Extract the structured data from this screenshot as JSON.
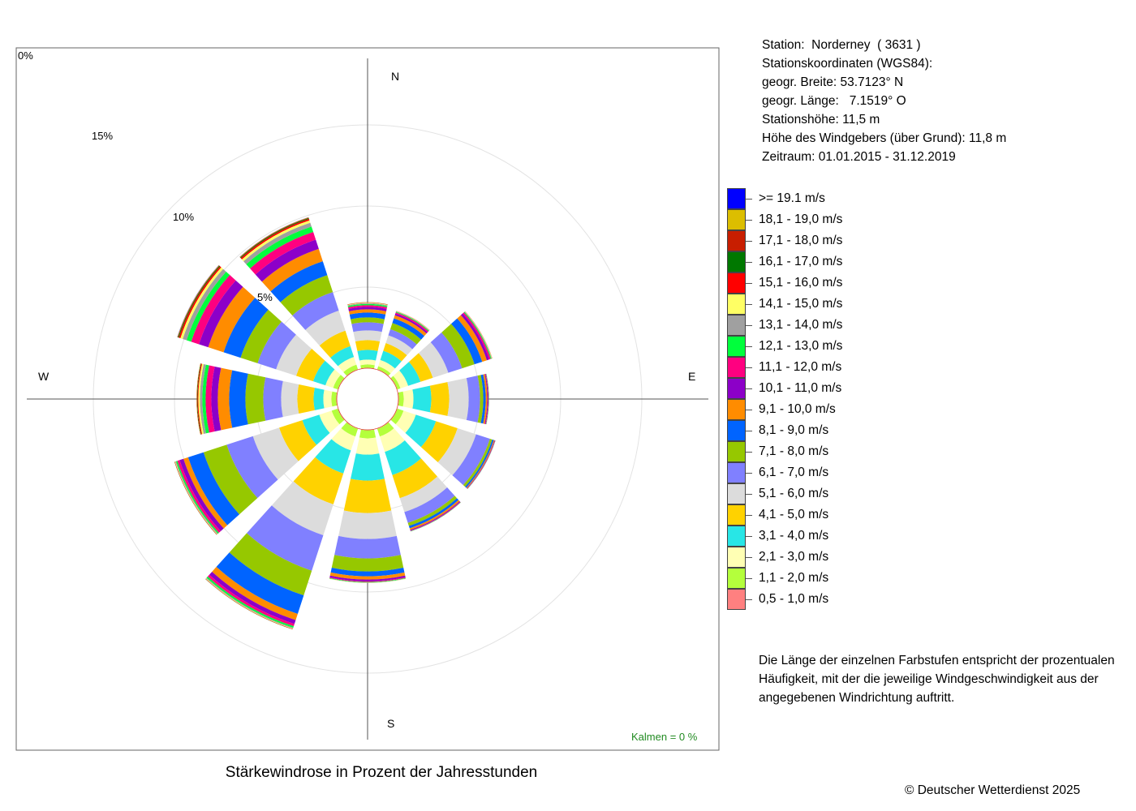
{
  "title": "Stärkewindrose in Prozent der Jahresstunden",
  "copyright": "© Deutscher Wetterdienst  2025",
  "calms": "Kalmen  =  0 %",
  "station_info": [
    "Station:  Norderney  ( 3631 )",
    "Stationskoordinaten (WGS84):",
    "geogr. Breite: 53.7123° N",
    "geogr. Länge:   7.1519° O",
    "Stationshöhe: 11,5 m",
    "Höhe des Windgebers (über Grund): 11,8 m",
    "Zeitraum: 01.01.2015 - 31.12.2019"
  ],
  "note": "Die Länge der einzelnen Farbstufen entspricht der prozentualen Häufigkeit, mit der die jeweilige Windgeschwindigkeit aus der angegebenen Windrichtung auftritt.",
  "compass": {
    "N": "N",
    "E": "E",
    "S": "S",
    "W": "W"
  },
  "ring_labels": [
    "0%",
    "5%",
    "10%",
    "15%"
  ],
  "legend": [
    {
      "label": ">= 19.1 m/s",
      "color": "#0000ff"
    },
    {
      "label": "18,1 - 19,0 m/s",
      "color": "#dcbe00"
    },
    {
      "label": "17,1 - 18,0 m/s",
      "color": "#c81e00"
    },
    {
      "label": "16,1 - 17,0 m/s",
      "color": "#007800"
    },
    {
      "label": "15,1 - 16,0 m/s",
      "color": "#ff0000"
    },
    {
      "label": "14,1 - 15,0 m/s",
      "color": "#ffff64"
    },
    {
      "label": "13,1 - 14,0 m/s",
      "color": "#a0a0a0"
    },
    {
      "label": "12,1 - 13,0 m/s",
      "color": "#00ff3c"
    },
    {
      "label": "11,1 - 12,0 m/s",
      "color": "#ff0080"
    },
    {
      "label": "10,1 - 11,0 m/s",
      "color": "#8c00c8"
    },
    {
      "label": "9,1 - 10,0 m/s",
      "color": "#ff8c00"
    },
    {
      "label": "8,1 - 9,0 m/s",
      "color": "#0064ff"
    },
    {
      "label": "7,1 - 8,0 m/s",
      "color": "#96c800"
    },
    {
      "label": "6,1 - 7,0 m/s",
      "color": "#8080ff"
    },
    {
      "label": "5,1 - 6,0 m/s",
      "color": "#dcdcdc"
    },
    {
      "label": "4,1 - 5,0 m/s",
      "color": "#ffd200"
    },
    {
      "label": "3,1 - 4,0 m/s",
      "color": "#28e6e6"
    },
    {
      "label": "2,1 - 3,0 m/s",
      "color": "#ffffb4"
    },
    {
      "label": "1,1 - 2,0 m/s",
      "color": "#b4ff3c"
    },
    {
      "label": "0,5 - 1,0 m/s",
      "color": "#ff8080"
    }
  ],
  "chart_data": {
    "type": "wind_rose",
    "title": "Stärkewindrose in Prozent der Jahresstunden",
    "unit": "%",
    "rings": [
      0,
      5,
      10,
      15
    ],
    "sector_width_deg": 30,
    "speed_classes": [
      "0,5 - 1,0 m/s",
      "1,1 - 2,0 m/s",
      "2,1 - 3,0 m/s",
      "3,1 - 4,0 m/s",
      "4,1 - 5,0 m/s",
      "5,1 - 6,0 m/s",
      "6,1 - 7,0 m/s",
      "7,1 - 8,0 m/s",
      "8,1 - 9,0 m/s",
      "9,1 - 10,0 m/s",
      "10,1 - 11,0 m/s",
      "11,1 - 12,0 m/s",
      "12,1 - 13,0 m/s",
      "13,1 - 14,0 m/s",
      "14,1 - 15,0 m/s",
      "15,1 - 16,0 m/s",
      "16,1 - 17,0 m/s",
      "17,1 - 18,0 m/s",
      "18,1 - 19,0 m/s",
      ">= 19.1 m/s"
    ],
    "sectors": [
      {
        "direction_deg": 0,
        "values": [
          0.03,
          0.2,
          0.3,
          0.6,
          0.6,
          0.6,
          0.5,
          0.3,
          0.3,
          0.2,
          0.15,
          0.1,
          0.08,
          0.05,
          0.03,
          0.02,
          0.01,
          0.0,
          0.0,
          0.0
        ]
      },
      {
        "direction_deg": 30,
        "values": [
          0.03,
          0.2,
          0.4,
          0.6,
          0.5,
          0.5,
          0.4,
          0.4,
          0.3,
          0.2,
          0.1,
          0.08,
          0.05,
          0.03,
          0.02,
          0.01,
          0.0,
          0.0,
          0.0,
          0.0
        ]
      },
      {
        "direction_deg": 60,
        "values": [
          0.03,
          0.2,
          0.5,
          0.8,
          0.8,
          1.0,
          0.9,
          0.8,
          0.5,
          0.3,
          0.15,
          0.1,
          0.05,
          0.03,
          0.02,
          0.01,
          0.0,
          0.0,
          0.0,
          0.0
        ]
      },
      {
        "direction_deg": 90,
        "values": [
          0.03,
          0.3,
          0.6,
          1.1,
          1.1,
          1.2,
          0.7,
          0.2,
          0.15,
          0.1,
          0.05,
          0.03,
          0.02,
          0.01,
          0.0,
          0.0,
          0.0,
          0.0,
          0.0,
          0.0
        ]
      },
      {
        "direction_deg": 120,
        "values": [
          0.03,
          0.4,
          0.8,
          1.3,
          1.4,
          1.2,
          0.9,
          0.15,
          0.1,
          0.05,
          0.03,
          0.02,
          0.01,
          0.0,
          0.0,
          0.0,
          0.0,
          0.0,
          0.0,
          0.0
        ]
      },
      {
        "direction_deg": 150,
        "values": [
          0.03,
          0.5,
          1.0,
          1.5,
          1.5,
          0.9,
          0.7,
          0.2,
          0.15,
          0.1,
          0.05,
          0.03,
          0.02,
          0.01,
          0.0,
          0.0,
          0.0,
          0.0,
          0.0,
          0.0
        ]
      },
      {
        "direction_deg": 180,
        "values": [
          0.03,
          0.5,
          1.0,
          1.6,
          2.0,
          1.6,
          1.2,
          0.8,
          0.3,
          0.2,
          0.1,
          0.05,
          0.03,
          0.02,
          0.01,
          0.0,
          0.0,
          0.0,
          0.0,
          0.0
        ]
      },
      {
        "direction_deg": 210,
        "values": [
          0.03,
          0.5,
          0.9,
          1.5,
          2.0,
          2.0,
          2.3,
          1.6,
          1.2,
          0.4,
          0.25,
          0.15,
          0.1,
          0.05,
          0.03,
          0.02,
          0.01,
          0.0,
          0.0,
          0.0
        ]
      },
      {
        "direction_deg": 240,
        "values": [
          0.03,
          0.4,
          0.8,
          1.1,
          1.5,
          1.7,
          1.7,
          1.5,
          1.0,
          0.3,
          0.25,
          0.15,
          0.08,
          0.05,
          0.03,
          0.02,
          0.01,
          0.0,
          0.0,
          0.0
        ]
      },
      {
        "direction_deg": 270,
        "values": [
          0.03,
          0.3,
          0.5,
          0.6,
          1.0,
          1.0,
          1.1,
          1.1,
          1.0,
          0.7,
          0.4,
          0.35,
          0.2,
          0.15,
          0.1,
          0.05,
          0.03,
          0.02,
          0.01,
          0.0
        ]
      },
      {
        "direction_deg": 300,
        "values": [
          0.03,
          0.3,
          0.5,
          0.8,
          1.1,
          1.3,
          1.2,
          1.1,
          1.1,
          1.0,
          0.6,
          0.5,
          0.3,
          0.25,
          0.15,
          0.1,
          0.05,
          0.03,
          0.02,
          0.01
        ]
      },
      {
        "direction_deg": 330,
        "values": [
          0.03,
          0.3,
          0.5,
          0.7,
          1.0,
          1.3,
          1.2,
          1.1,
          0.9,
          0.8,
          0.6,
          0.5,
          0.35,
          0.25,
          0.15,
          0.1,
          0.05,
          0.03,
          0.02,
          0.01
        ]
      }
    ]
  }
}
